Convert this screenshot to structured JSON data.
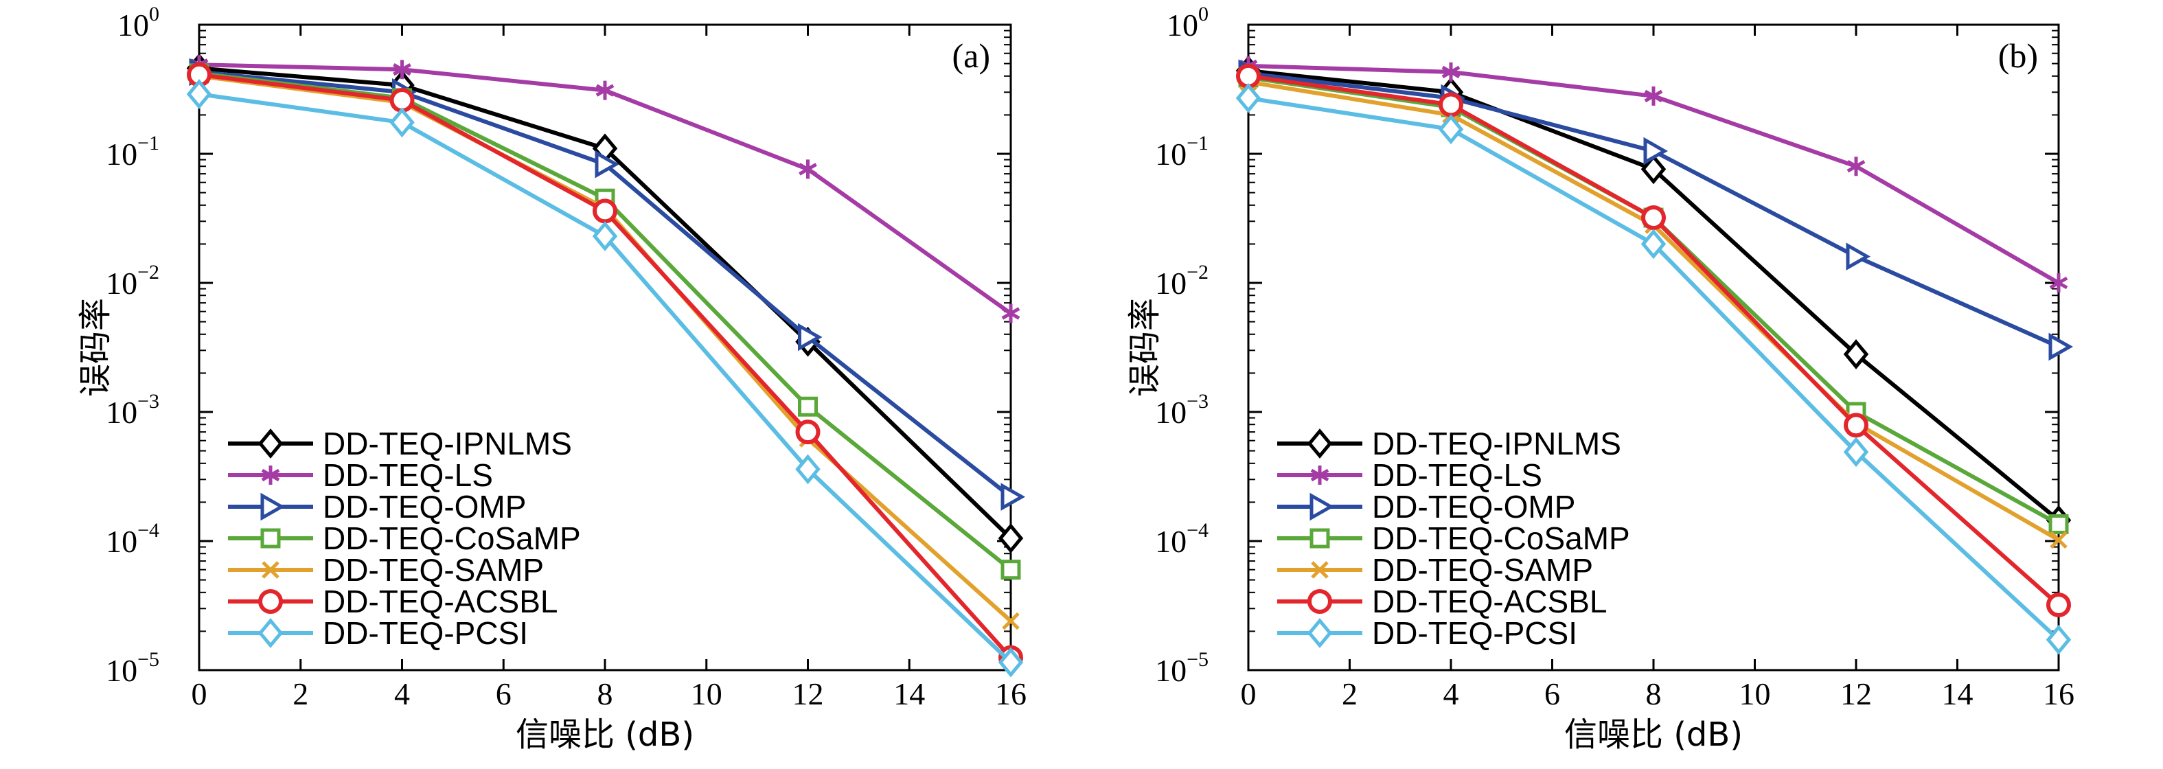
{
  "chart_data": [
    {
      "type": "line",
      "panel_label": "(a)",
      "xlabel": "信噪比 (dB)",
      "ylabel": "误码率",
      "xlim": [
        0,
        16
      ],
      "ylim": [
        1e-05,
        1
      ],
      "yscale": "log",
      "xticks": [
        0,
        2,
        4,
        6,
        8,
        10,
        12,
        14,
        16
      ],
      "yticks": [
        {
          "base": "10",
          "exp": "0",
          "value": 1
        },
        {
          "base": "10",
          "exp": "−1",
          "value": 0.1
        },
        {
          "base": "10",
          "exp": "−2",
          "value": 0.01
        },
        {
          "base": "10",
          "exp": "−3",
          "value": 0.001
        },
        {
          "base": "10",
          "exp": "−4",
          "value": 0.0001
        },
        {
          "base": "10",
          "exp": "−5",
          "value": 1e-05
        }
      ],
      "legend_position": "lower-left",
      "x": [
        0,
        4,
        8,
        12,
        16
      ],
      "series": [
        {
          "name": "DD-TEQ-IPNLMS",
          "color": "#000000",
          "marker": "diamond",
          "values": [
            0.46,
            0.34,
            0.11,
            0.0035,
            0.000105
          ]
        },
        {
          "name": "DD-TEQ-LS",
          "color": "#a53ba5",
          "marker": "asterisk",
          "values": [
            0.49,
            0.45,
            0.31,
            0.076,
            0.0058
          ]
        },
        {
          "name": "DD-TEQ-OMP",
          "color": "#2a4ba0",
          "marker": "triangle-right",
          "values": [
            0.43,
            0.3,
            0.083,
            0.0038,
            0.00022
          ]
        },
        {
          "name": "DD-TEQ-CoSaMP",
          "color": "#5aa83a",
          "marker": "square",
          "values": [
            0.42,
            0.27,
            0.045,
            0.0011,
            6e-05
          ]
        },
        {
          "name": "DD-TEQ-SAMP",
          "color": "#e2a12d",
          "marker": "x",
          "values": [
            0.4,
            0.25,
            0.038,
            0.00062,
            2.4e-05
          ]
        },
        {
          "name": "DD-TEQ-ACSBL",
          "color": "#e3262c",
          "marker": "circle",
          "values": [
            0.41,
            0.26,
            0.036,
            0.0007,
            1.25e-05
          ]
        },
        {
          "name": "DD-TEQ-PCSI",
          "color": "#5bbde4",
          "marker": "diamond",
          "values": [
            0.29,
            0.175,
            0.023,
            0.00036,
            1.15e-05
          ]
        }
      ]
    },
    {
      "type": "line",
      "panel_label": "(b)",
      "xlabel": "信噪比 (dB)",
      "ylabel": "误码率",
      "xlim": [
        0,
        16
      ],
      "ylim": [
        1e-05,
        1
      ],
      "yscale": "log",
      "xticks": [
        0,
        2,
        4,
        6,
        8,
        10,
        12,
        14,
        16
      ],
      "yticks": [
        {
          "base": "10",
          "exp": "0",
          "value": 1
        },
        {
          "base": "10",
          "exp": "−1",
          "value": 0.1
        },
        {
          "base": "10",
          "exp": "−2",
          "value": 0.01
        },
        {
          "base": "10",
          "exp": "−3",
          "value": 0.001
        },
        {
          "base": "10",
          "exp": "−4",
          "value": 0.0001
        },
        {
          "base": "10",
          "exp": "−5",
          "value": 1e-05
        }
      ],
      "legend_position": "lower-left",
      "x": [
        0,
        4,
        8,
        12,
        16
      ],
      "series": [
        {
          "name": "DD-TEQ-IPNLMS",
          "color": "#000000",
          "marker": "diamond",
          "values": [
            0.44,
            0.3,
            0.076,
            0.0028,
            0.000145
          ]
        },
        {
          "name": "DD-TEQ-LS",
          "color": "#a53ba5",
          "marker": "asterisk",
          "values": [
            0.48,
            0.43,
            0.28,
            0.08,
            0.01
          ]
        },
        {
          "name": "DD-TEQ-OMP",
          "color": "#2a4ba0",
          "marker": "triangle-right",
          "values": [
            0.42,
            0.27,
            0.105,
            0.016,
            0.0032
          ]
        },
        {
          "name": "DD-TEQ-CoSaMP",
          "color": "#5aa83a",
          "marker": "square",
          "values": [
            0.39,
            0.23,
            0.032,
            0.001,
            0.000135
          ]
        },
        {
          "name": "DD-TEQ-SAMP",
          "color": "#e2a12d",
          "marker": "x",
          "values": [
            0.36,
            0.2,
            0.028,
            0.00082,
            0.000102
          ]
        },
        {
          "name": "DD-TEQ-ACSBL",
          "color": "#e3262c",
          "marker": "circle",
          "values": [
            0.4,
            0.24,
            0.032,
            0.00079,
            3.2e-05
          ]
        },
        {
          "name": "DD-TEQ-PCSI",
          "color": "#5bbde4",
          "marker": "diamond",
          "values": [
            0.27,
            0.155,
            0.02,
            0.00049,
            1.72e-05
          ]
        }
      ]
    }
  ]
}
